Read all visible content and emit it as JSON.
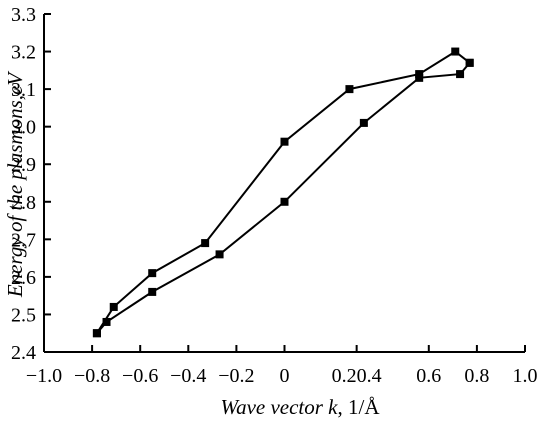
{
  "chart_data": {
    "type": "line",
    "title": "",
    "xlabel": "Wave vector k",
    "xlabel_unit": ", 1/Å",
    "ylabel": "Energy of the plasmons,eV",
    "xlim": [
      -1.0,
      1.0
    ],
    "ylim": [
      2.4,
      3.3
    ],
    "x_ticks": [
      {
        "value": -1.0,
        "label": "−1.0"
      },
      {
        "value": -0.8,
        "label": "−0.8"
      },
      {
        "value": -0.6,
        "label": "−0.6"
      },
      {
        "value": -0.4,
        "label": "−0.4"
      },
      {
        "value": -0.2,
        "label": "−0.2"
      },
      {
        "value": 0.0,
        "label": "0"
      },
      {
        "value": 0.3,
        "label": "0.20.4"
      },
      {
        "value": 0.6,
        "label": "0.6"
      },
      {
        "value": 0.8,
        "label": "0.8"
      },
      {
        "value": 1.0,
        "label": "1.0"
      }
    ],
    "y_ticks": [
      2.4,
      2.5,
      2.6,
      2.7,
      2.8,
      2.9,
      3.0,
      3.1,
      3.2,
      3.3
    ],
    "grid": false,
    "legend": "none",
    "series": [
      {
        "color": "#000000",
        "marker": "square",
        "x": [
          -0.78,
          -0.71,
          -0.55,
          -0.33,
          0.0,
          0.27,
          0.56,
          0.71,
          0.77
        ],
        "y": [
          2.45,
          2.52,
          2.61,
          2.69,
          2.96,
          3.1,
          3.14,
          3.2,
          3.17
        ]
      },
      {
        "color": "#000000",
        "marker": "square",
        "x": [
          -0.78,
          -0.74,
          -0.55,
          -0.27,
          0.0,
          0.33,
          0.56,
          0.73,
          0.77
        ],
        "y": [
          2.45,
          2.48,
          2.56,
          2.66,
          2.8,
          3.01,
          3.13,
          3.14,
          3.17
        ]
      }
    ]
  }
}
